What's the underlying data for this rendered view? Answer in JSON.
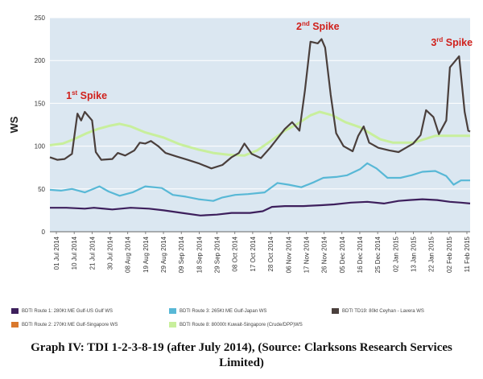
{
  "chart_data": {
    "type": "line",
    "ylabel": "WS",
    "ylim": [
      0,
      250
    ],
    "yticks": [
      0,
      50,
      100,
      150,
      200,
      250
    ],
    "xticks": [
      "01 Jul 2014",
      "10 Jul 2014",
      "21 Jul 2014",
      "30 Jul 2014",
      "08 Aug 2014",
      "19 Aug 2014",
      "29 Aug 2014",
      "09 Sep 2014",
      "18 Sep 2014",
      "29 Sep 2014",
      "08 Oct 2014",
      "17 Oct 2014",
      "28 Oct 2014",
      "06 Nov 2014",
      "17 Nov 2014",
      "26 Nov 2014",
      "05 Dec 2014",
      "16 Dec 2014",
      "25 Dec 2014",
      "02 Jan 2015",
      "13 Jan 2015",
      "22 Jan 2015",
      "02 Feb 2015",
      "11 Feb 2015"
    ],
    "x_range": [
      "2014-07-01",
      "2015-02-15"
    ],
    "grid": true,
    "legend_position": "bottom",
    "series": [
      {
        "name": "BDTI Route 1: 280Kt ME Gulf-US Gulf WS",
        "color": "#3d1f5c",
        "points": [
          [
            "2014-07-01",
            28
          ],
          [
            "2014-07-10",
            28
          ],
          [
            "2014-07-20",
            27
          ],
          [
            "2014-07-25",
            28
          ],
          [
            "2014-08-04",
            26
          ],
          [
            "2014-08-14",
            28
          ],
          [
            "2014-08-24",
            27
          ],
          [
            "2014-09-01",
            25
          ],
          [
            "2014-09-11",
            22
          ],
          [
            "2014-09-21",
            19
          ],
          [
            "2014-09-30",
            20
          ],
          [
            "2014-10-08",
            22
          ],
          [
            "2014-10-18",
            22
          ],
          [
            "2014-10-25",
            24
          ],
          [
            "2014-10-30",
            29
          ],
          [
            "2014-11-06",
            30
          ],
          [
            "2014-11-16",
            30
          ],
          [
            "2014-11-26",
            31
          ],
          [
            "2014-12-03",
            32
          ],
          [
            "2014-12-12",
            34
          ],
          [
            "2014-12-21",
            35
          ],
          [
            "2014-12-30",
            33
          ],
          [
            "2015-01-07",
            36
          ],
          [
            "2015-01-13",
            37
          ],
          [
            "2015-01-20",
            38
          ],
          [
            "2015-01-28",
            37
          ],
          [
            "2015-02-04",
            35
          ],
          [
            "2015-02-10",
            34
          ],
          [
            "2015-02-15",
            33
          ]
        ]
      },
      {
        "name": "BDTI Route 2: 270Kt ME Gulf-Singapore WS",
        "color": "#d9782d",
        "points": []
      },
      {
        "name": "BDTI Route 3: 265Kt ME Gulf-Japan WS",
        "color": "#58b8d6",
        "points": [
          [
            "2014-07-01",
            49
          ],
          [
            "2014-07-07",
            48
          ],
          [
            "2014-07-13",
            50
          ],
          [
            "2014-07-20",
            46
          ],
          [
            "2014-07-28",
            53
          ],
          [
            "2014-08-02",
            47
          ],
          [
            "2014-08-08",
            42
          ],
          [
            "2014-08-15",
            46
          ],
          [
            "2014-08-22",
            53
          ],
          [
            "2014-08-31",
            51
          ],
          [
            "2014-09-06",
            43
          ],
          [
            "2014-09-13",
            41
          ],
          [
            "2014-09-20",
            38
          ],
          [
            "2014-09-28",
            36
          ],
          [
            "2014-10-03",
            40
          ],
          [
            "2014-10-10",
            43
          ],
          [
            "2014-10-17",
            44
          ],
          [
            "2014-10-26",
            46
          ],
          [
            "2014-11-02",
            57
          ],
          [
            "2014-11-08",
            55
          ],
          [
            "2014-11-15",
            52
          ],
          [
            "2014-11-22",
            58
          ],
          [
            "2014-11-27",
            63
          ],
          [
            "2014-12-04",
            64
          ],
          [
            "2014-12-10",
            66
          ],
          [
            "2014-12-17",
            73
          ],
          [
            "2014-12-21",
            80
          ],
          [
            "2014-12-26",
            74
          ],
          [
            "2015-01-01",
            63
          ],
          [
            "2015-01-08",
            63
          ],
          [
            "2015-01-14",
            66
          ],
          [
            "2015-01-20",
            70
          ],
          [
            "2015-01-27",
            71
          ],
          [
            "2015-02-02",
            65
          ],
          [
            "2015-02-06",
            55
          ],
          [
            "2015-02-10",
            60
          ],
          [
            "2015-02-15",
            60
          ]
        ]
      },
      {
        "name": "BDTI Route 8: 80000t Kuwait-Singapore (Crude/DPP)WS",
        "color": "#c8ef9c",
        "points": [
          [
            "2014-07-01",
            101
          ],
          [
            "2014-07-08",
            103
          ],
          [
            "2014-07-14",
            108
          ],
          [
            "2014-07-21",
            115
          ],
          [
            "2014-07-27",
            120
          ],
          [
            "2014-08-03",
            124
          ],
          [
            "2014-08-08",
            126
          ],
          [
            "2014-08-14",
            123
          ],
          [
            "2014-08-22",
            116
          ],
          [
            "2014-09-01",
            110
          ],
          [
            "2014-09-10",
            102
          ],
          [
            "2014-09-20",
            96
          ],
          [
            "2014-09-28",
            92
          ],
          [
            "2014-10-06",
            90
          ],
          [
            "2014-10-15",
            89
          ],
          [
            "2014-10-22",
            95
          ],
          [
            "2014-10-30",
            107
          ],
          [
            "2014-11-06",
            118
          ],
          [
            "2014-11-13",
            126
          ],
          [
            "2014-11-20",
            136
          ],
          [
            "2014-11-25",
            140
          ],
          [
            "2014-12-02",
            136
          ],
          [
            "2014-12-09",
            128
          ],
          [
            "2014-12-17",
            122
          ],
          [
            "2014-12-28",
            108
          ],
          [
            "2015-01-04",
            104
          ],
          [
            "2015-01-15",
            104
          ],
          [
            "2015-01-27",
            112
          ],
          [
            "2015-02-05",
            112
          ],
          [
            "2015-02-11",
            112
          ],
          [
            "2015-02-15",
            112
          ]
        ]
      },
      {
        "name": "BDTI TD19: 80kt Ceyhan - Lavera WS",
        "color": "#4a3f3c",
        "points": [
          [
            "2014-07-01",
            87
          ],
          [
            "2014-07-05",
            84
          ],
          [
            "2014-07-09",
            85
          ],
          [
            "2014-07-13",
            91
          ],
          [
            "2014-07-16",
            138
          ],
          [
            "2014-07-18",
            130
          ],
          [
            "2014-07-20",
            140
          ],
          [
            "2014-07-24",
            130
          ],
          [
            "2014-07-26",
            93
          ],
          [
            "2014-07-29",
            84
          ],
          [
            "2014-08-04",
            85
          ],
          [
            "2014-08-07",
            92
          ],
          [
            "2014-08-11",
            89
          ],
          [
            "2014-08-16",
            95
          ],
          [
            "2014-08-19",
            104
          ],
          [
            "2014-08-22",
            103
          ],
          [
            "2014-08-25",
            106
          ],
          [
            "2014-08-29",
            100
          ],
          [
            "2014-09-02",
            92
          ],
          [
            "2014-09-08",
            88
          ],
          [
            "2014-09-14",
            84
          ],
          [
            "2014-09-20",
            80
          ],
          [
            "2014-09-27",
            74
          ],
          [
            "2014-10-03",
            78
          ],
          [
            "2014-10-08",
            87
          ],
          [
            "2014-10-12",
            92
          ],
          [
            "2014-10-15",
            103
          ],
          [
            "2014-10-19",
            91
          ],
          [
            "2014-10-24",
            86
          ],
          [
            "2014-10-29",
            98
          ],
          [
            "2014-11-02",
            109
          ],
          [
            "2014-11-06",
            120
          ],
          [
            "2014-11-10",
            128
          ],
          [
            "2014-11-14",
            118
          ],
          [
            "2014-11-17",
            165
          ],
          [
            "2014-11-20",
            222
          ],
          [
            "2014-11-24",
            220
          ],
          [
            "2014-11-26",
            225
          ],
          [
            "2014-11-28",
            215
          ],
          [
            "2014-12-01",
            160
          ],
          [
            "2014-12-04",
            115
          ],
          [
            "2014-12-08",
            100
          ],
          [
            "2014-12-13",
            94
          ],
          [
            "2014-12-16",
            112
          ],
          [
            "2014-12-19",
            123
          ],
          [
            "2014-12-22",
            104
          ],
          [
            "2014-12-27",
            98
          ],
          [
            "2015-01-02",
            95
          ],
          [
            "2015-01-07",
            93
          ],
          [
            "2015-01-11",
            98
          ],
          [
            "2015-01-15",
            103
          ],
          [
            "2015-01-19",
            113
          ],
          [
            "2015-01-22",
            142
          ],
          [
            "2015-01-26",
            134
          ],
          [
            "2015-01-29",
            114
          ],
          [
            "2015-02-02",
            130
          ],
          [
            "2015-02-04",
            192
          ],
          [
            "2015-02-09",
            205
          ],
          [
            "2015-02-12",
            140
          ],
          [
            "2015-02-14",
            118
          ],
          [
            "2015-02-15",
            117
          ]
        ]
      }
    ],
    "annotations": [
      {
        "base": "1",
        "sup": "st",
        "text": "Spike",
        "date": "2014-07-21",
        "value": 155
      },
      {
        "base": "2",
        "sup": "nd",
        "text": "Spike",
        "date": "2014-11-24",
        "value": 236
      },
      {
        "base": "3",
        "sup": "rd",
        "text": "Spike",
        "date": "2015-02-05",
        "value": 217
      }
    ]
  },
  "legend": [
    {
      "label": "BDTI Route 1: 280Kt ME Gulf-US Gulf WS",
      "color": "#3d1f5c"
    },
    {
      "label": "BDTI Route 3: 265Kt ME Gulf-Japan WS",
      "color": "#58b8d6"
    },
    {
      "label": "BDTI TD19: 80kt Ceyhan - Lavera WS",
      "color": "#4a3f3c"
    },
    {
      "label": "BDTI Route 2: 270Kt ME Gulf-Singapore WS",
      "color": "#d9782d"
    },
    {
      "label": "BDTI Route 8: 80000t Kuwait-Singapore (Crude/DPP)WS",
      "color": "#c8ef9c"
    }
  ],
  "caption": {
    "line1": "Graph IV: TDI 1-2-3-8-19 (after July 2014), (Source: Clarksons Research Services",
    "line2": "Limited)"
  },
  "colors": {
    "plot_background": "#dbe7f1",
    "grid": "#ffffff",
    "axis": "#666666"
  }
}
